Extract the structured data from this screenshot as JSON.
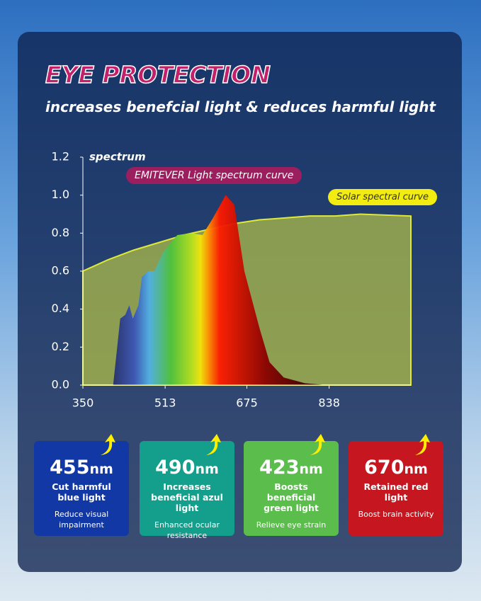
{
  "header": {
    "title": "EYE PROTECTION",
    "subtitle": "increases benefcial light & reduces harmful light"
  },
  "chart_data": {
    "type": "area",
    "y_label": "spectrum",
    "xlim": [
      350,
      1000
    ],
    "xticks": [
      350,
      513,
      675,
      838
    ],
    "ylim": [
      0,
      1.2
    ],
    "yticks": [
      {
        "value": 0,
        "label": "0.0"
      },
      0.2,
      0.4,
      0.6,
      0.8,
      {
        "value": 1,
        "label": "1.0"
      },
      1.2
    ],
    "series": [
      {
        "name": "Solar spectral curve",
        "color": "#dfe93a",
        "x": [
          350,
          400,
          450,
          500,
          550,
          600,
          650,
          700,
          750,
          800,
          850,
          900,
          1000
        ],
        "values": [
          0.6,
          0.66,
          0.71,
          0.75,
          0.79,
          0.82,
          0.85,
          0.87,
          0.88,
          0.89,
          0.89,
          0.9,
          0.89
        ]
      },
      {
        "name": "EMITEVER Light spectrum curve",
        "color": "#9b1f5e",
        "x": [
          410,
          424,
          434,
          442,
          449,
          460,
          467,
          480,
          492,
          509,
          537,
          565,
          587,
          608,
          633,
          650,
          670,
          700,
          720,
          748,
          790,
          833
        ],
        "values": [
          0,
          0.35,
          0.37,
          0.42,
          0.35,
          0.42,
          0.57,
          0.6,
          0.6,
          0.7,
          0.79,
          0.8,
          0.79,
          0.88,
          1.0,
          0.95,
          0.6,
          0.3,
          0.12,
          0.04,
          0.01,
          0
        ]
      }
    ]
  },
  "cards": [
    {
      "value": "455",
      "unit": "nm",
      "title": "Cut harmful blue light",
      "desc": "Reduce visual impairment",
      "color": "#1238a6"
    },
    {
      "value": "490",
      "unit": "nm",
      "title": "Increases beneficial azul light",
      "desc": "Enhanced ocular resistance",
      "color": "#139f8b"
    },
    {
      "value": "423",
      "unit": "nm",
      "title": "Boosts beneficial green light",
      "desc": "Relieve eye strain",
      "color": "#5bbd4b"
    },
    {
      "value": "670",
      "unit": "nm",
      "title": "Retained red light",
      "desc": "Boost brain activity",
      "color": "#c6161f"
    }
  ]
}
